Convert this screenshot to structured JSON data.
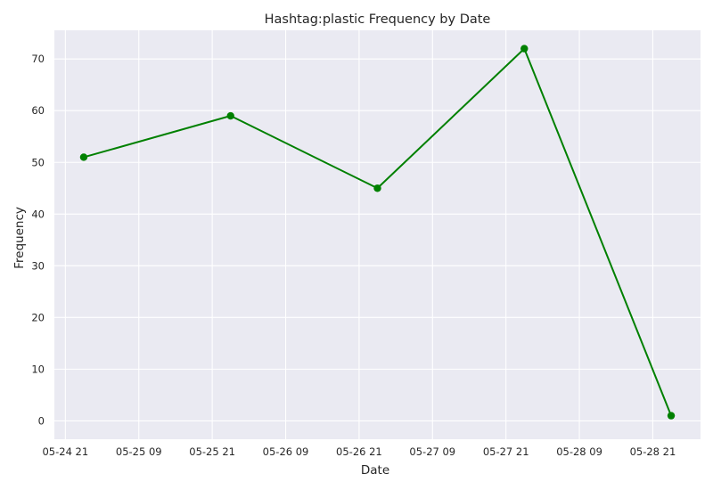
{
  "chart_data": {
    "type": "line",
    "title": "Hashtag:plastic Frequency by Date",
    "xlabel": "Date",
    "ylabel": "Frequency",
    "x": [
      "2023-05-25 00:00",
      "2023-05-26 00:00",
      "2023-05-27 00:00",
      "2023-05-28 00:00",
      "2023-05-29 00:00"
    ],
    "series": [
      {
        "values": [
          51,
          59,
          45,
          72,
          1
        ]
      }
    ],
    "xlim": [
      "2023-05-24 19:12",
      "2023-05-29 04:48"
    ],
    "ylim": [
      -3.55,
      75.55
    ],
    "x_ticks": [
      {
        "value": "2023-05-24 21:00",
        "label": "05-24 21"
      },
      {
        "value": "2023-05-25 09:00",
        "label": "05-25 09"
      },
      {
        "value": "2023-05-25 21:00",
        "label": "05-25 21"
      },
      {
        "value": "2023-05-26 09:00",
        "label": "05-26 09"
      },
      {
        "value": "2023-05-26 21:00",
        "label": "05-26 21"
      },
      {
        "value": "2023-05-27 09:00",
        "label": "05-27 09"
      },
      {
        "value": "2023-05-27 21:00",
        "label": "05-27 21"
      },
      {
        "value": "2023-05-28 09:00",
        "label": "05-28 09"
      },
      {
        "value": "2023-05-28 21:00",
        "label": "05-28 21"
      }
    ],
    "y_ticks": [
      0,
      10,
      20,
      30,
      40,
      50,
      60,
      70
    ],
    "grid": true,
    "colors": {
      "line": "#008000",
      "plot_background": "#eaeaf2",
      "grid": "#ffffff",
      "text": "#262626"
    }
  }
}
